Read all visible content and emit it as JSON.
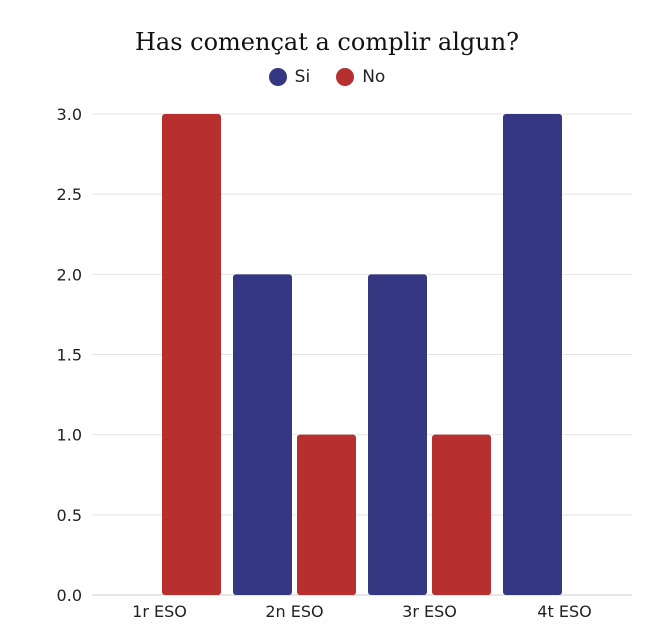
{
  "chart_data": {
    "type": "bar",
    "title": "Has començat a complir algun?",
    "categories": [
      "1r ESO",
      "2n ESO",
      "3r ESO",
      "4t ESO"
    ],
    "series": [
      {
        "name": "Si",
        "color": "#353783",
        "values": [
          0,
          2,
          2,
          3
        ]
      },
      {
        "name": "No",
        "color": "#b72f2f",
        "values": [
          3,
          1,
          1,
          0
        ]
      }
    ],
    "ylim": [
      0,
      3
    ],
    "yticks": [
      "0.0",
      "0.5",
      "1.0",
      "1.5",
      "2.0",
      "2.5",
      "3.0"
    ],
    "grid": true,
    "legend_position": "top"
  }
}
